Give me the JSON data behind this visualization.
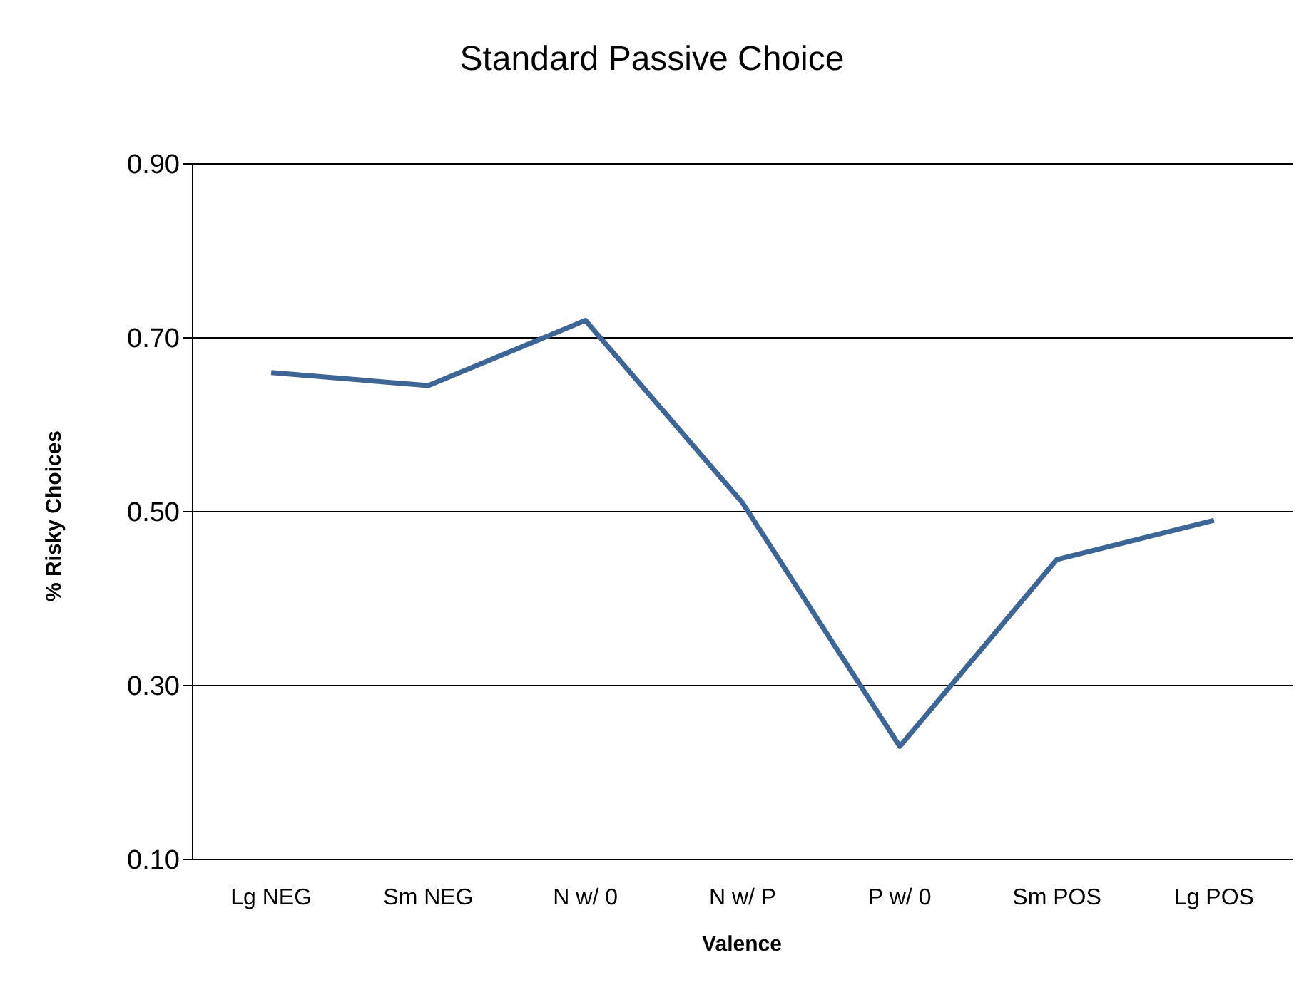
{
  "chart_data": {
    "type": "line",
    "title": "Standard Passive Choice",
    "xlabel": "Valence",
    "ylabel": "% Risky Choices",
    "categories": [
      "Lg NEG",
      "Sm NEG",
      "N w/ 0",
      "N w/ P",
      "P w/ 0",
      "Sm POS",
      "Lg POS"
    ],
    "series": [
      {
        "color": "#3d6596",
        "values": [
          0.66,
          0.645,
          0.72,
          0.51,
          0.23,
          0.445,
          0.49
        ]
      }
    ],
    "ylim": [
      0.1,
      0.9
    ],
    "yticks": [
      {
        "value": 0.1,
        "label": "0.10"
      },
      {
        "value": 0.3,
        "label": "0.30"
      },
      {
        "value": 0.5,
        "label": "0.50"
      },
      {
        "value": 0.7,
        "label": "0.70"
      },
      {
        "value": 0.9,
        "label": "0.90"
      }
    ],
    "grid": "y",
    "legend": false,
    "marker": "none",
    "line_style": "solid"
  }
}
